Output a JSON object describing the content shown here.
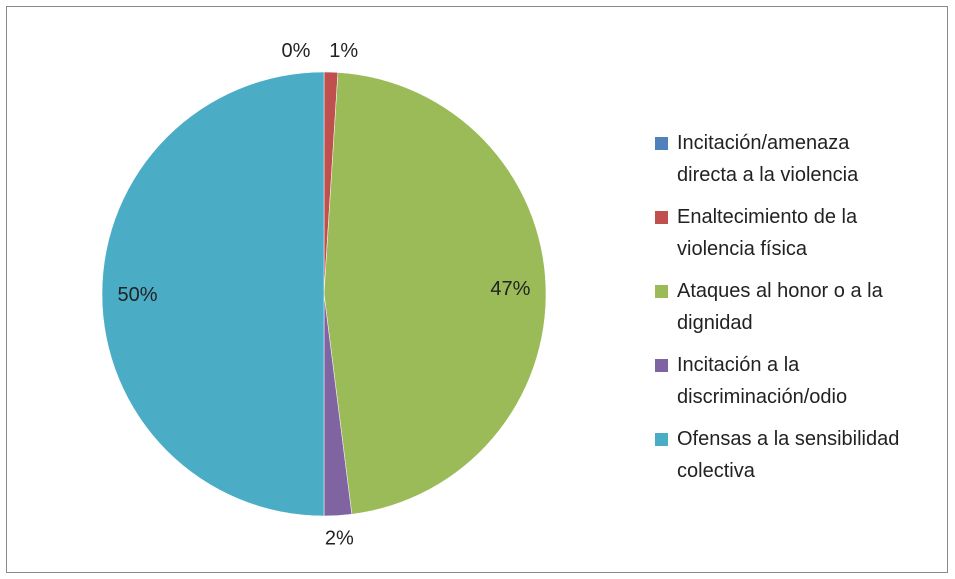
{
  "chart_data": {
    "type": "pie",
    "categories": [
      "Incitación/amenaza directa a la violencia",
      "Enaltecimiento de la violencia física",
      "Ataques al honor o a la dignidad",
      "Incitación a la discriminación/odio",
      "Ofensas a la sensibilidad colectiva"
    ],
    "values": [
      0,
      1,
      47,
      2,
      50
    ],
    "data_labels": [
      "0%",
      "1%",
      "47%",
      "2%",
      "50%"
    ],
    "colors": [
      "#4f81bd",
      "#c0504d",
      "#9bbb59",
      "#8064a2",
      "#4bacc6"
    ],
    "legend_lines": [
      [
        "Incitación/amenaza",
        "directa a la violencia"
      ],
      [
        "Enaltecimiento de la",
        "violencia física"
      ],
      [
        "Ataques al honor o a la",
        "dignidad"
      ],
      [
        "Incitación a la",
        "discriminación/odio"
      ],
      [
        "Ofensas a la sensibilidad",
        "colectiva"
      ]
    ],
    "legend_position": "right",
    "start_angle": "top, clockwise"
  }
}
